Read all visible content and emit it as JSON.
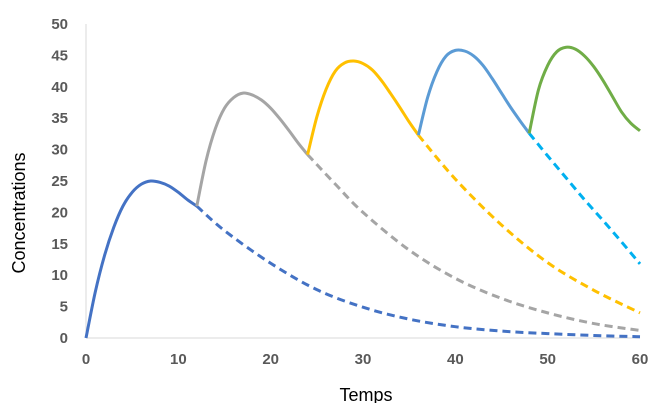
{
  "chart_data": {
    "type": "line",
    "title": "",
    "xlabel": "Temps",
    "ylabel": "Concentrations",
    "xlim": [
      0,
      60
    ],
    "ylim": [
      0,
      50
    ],
    "x_ticks": [
      0,
      10,
      20,
      30,
      40,
      50,
      60
    ],
    "y_ticks": [
      0,
      5,
      10,
      15,
      20,
      25,
      30,
      35,
      40,
      45,
      50
    ],
    "grid": false,
    "legend": "none",
    "series": [
      {
        "color": "#4472c4",
        "style": "solid",
        "points": [
          [
            0,
            0
          ],
          [
            1,
            7.3
          ],
          [
            2,
            13.1
          ],
          [
            3,
            17.6
          ],
          [
            4,
            21.0
          ],
          [
            5,
            23.2
          ],
          [
            6,
            24.5
          ],
          [
            7,
            25.0
          ],
          [
            8,
            24.8
          ],
          [
            9,
            24.2
          ],
          [
            10,
            23.2
          ],
          [
            11,
            22.0
          ],
          [
            12,
            21.0
          ]
        ]
      },
      {
        "color": "#4472c4",
        "style": "dashed",
        "points": [
          [
            12,
            21.0
          ],
          [
            15,
            17.1
          ],
          [
            20,
            11.9
          ],
          [
            25,
            7.7
          ],
          [
            30,
            4.9
          ],
          [
            35,
            3.0
          ],
          [
            40,
            1.8
          ],
          [
            45,
            1.1
          ],
          [
            50,
            0.7
          ],
          [
            55,
            0.4
          ],
          [
            60,
            0.2
          ]
        ]
      },
      {
        "color": "#a5a5a5",
        "style": "solid",
        "points": [
          [
            12,
            21.0
          ],
          [
            13,
            28.2
          ],
          [
            14,
            33.3
          ],
          [
            15,
            36.6
          ],
          [
            16,
            38.3
          ],
          [
            17,
            39.0
          ],
          [
            18,
            38.7
          ],
          [
            19,
            37.9
          ],
          [
            20,
            36.6
          ],
          [
            21,
            34.9
          ],
          [
            22,
            33.0
          ],
          [
            23,
            31.0
          ],
          [
            24,
            29.2
          ]
        ]
      },
      {
        "color": "#a5a5a5",
        "style": "dashed",
        "points": [
          [
            24,
            29.2
          ],
          [
            27,
            24.5
          ],
          [
            30,
            20.0
          ],
          [
            35,
            14.0
          ],
          [
            40,
            9.5
          ],
          [
            45,
            6.3
          ],
          [
            50,
            4.0
          ],
          [
            55,
            2.3
          ],
          [
            60,
            1.2
          ]
        ]
      },
      {
        "color": "#ffc000",
        "style": "solid",
        "points": [
          [
            24,
            29.2
          ],
          [
            25,
            35.2
          ],
          [
            26,
            39.6
          ],
          [
            27,
            42.5
          ],
          [
            28,
            43.8
          ],
          [
            29,
            44.1
          ],
          [
            30,
            43.7
          ],
          [
            31,
            42.7
          ],
          [
            32,
            41.0
          ],
          [
            33,
            38.9
          ],
          [
            34,
            36.7
          ],
          [
            35,
            34.4
          ],
          [
            36,
            32.3
          ]
        ]
      },
      {
        "color": "#ffc000",
        "style": "dashed",
        "points": [
          [
            36,
            32.3
          ],
          [
            40,
            25.3
          ],
          [
            45,
            18.0
          ],
          [
            50,
            12.0
          ],
          [
            55,
            7.6
          ],
          [
            60,
            4.0
          ]
        ]
      },
      {
        "color": "#5b9bd5",
        "style": "solid",
        "points": [
          [
            36,
            32.3
          ],
          [
            37,
            38.3
          ],
          [
            38,
            42.4
          ],
          [
            39,
            44.9
          ],
          [
            40,
            45.8
          ],
          [
            41,
            45.7
          ],
          [
            42,
            44.9
          ],
          [
            43,
            43.4
          ],
          [
            44,
            41.3
          ],
          [
            45,
            39.0
          ],
          [
            46,
            36.7
          ],
          [
            47,
            34.6
          ],
          [
            48,
            32.6
          ]
        ]
      },
      {
        "color": "#00b0f0",
        "style": "dashed",
        "points": [
          [
            48,
            32.6
          ],
          [
            50,
            29.0
          ],
          [
            52,
            25.5
          ],
          [
            54,
            22.0
          ],
          [
            56,
            18.7
          ],
          [
            58,
            15.3
          ],
          [
            60,
            11.8
          ]
        ]
      },
      {
        "color": "#70ad47",
        "style": "solid",
        "points": [
          [
            48,
            32.6
          ],
          [
            49,
            39.5
          ],
          [
            50,
            43.4
          ],
          [
            51,
            45.6
          ],
          [
            52,
            46.3
          ],
          [
            53,
            46.0
          ],
          [
            54,
            44.9
          ],
          [
            55,
            43.2
          ],
          [
            56,
            41.0
          ],
          [
            57,
            38.5
          ],
          [
            58,
            36.0
          ],
          [
            59,
            34.2
          ],
          [
            60,
            33.0
          ]
        ]
      }
    ]
  }
}
